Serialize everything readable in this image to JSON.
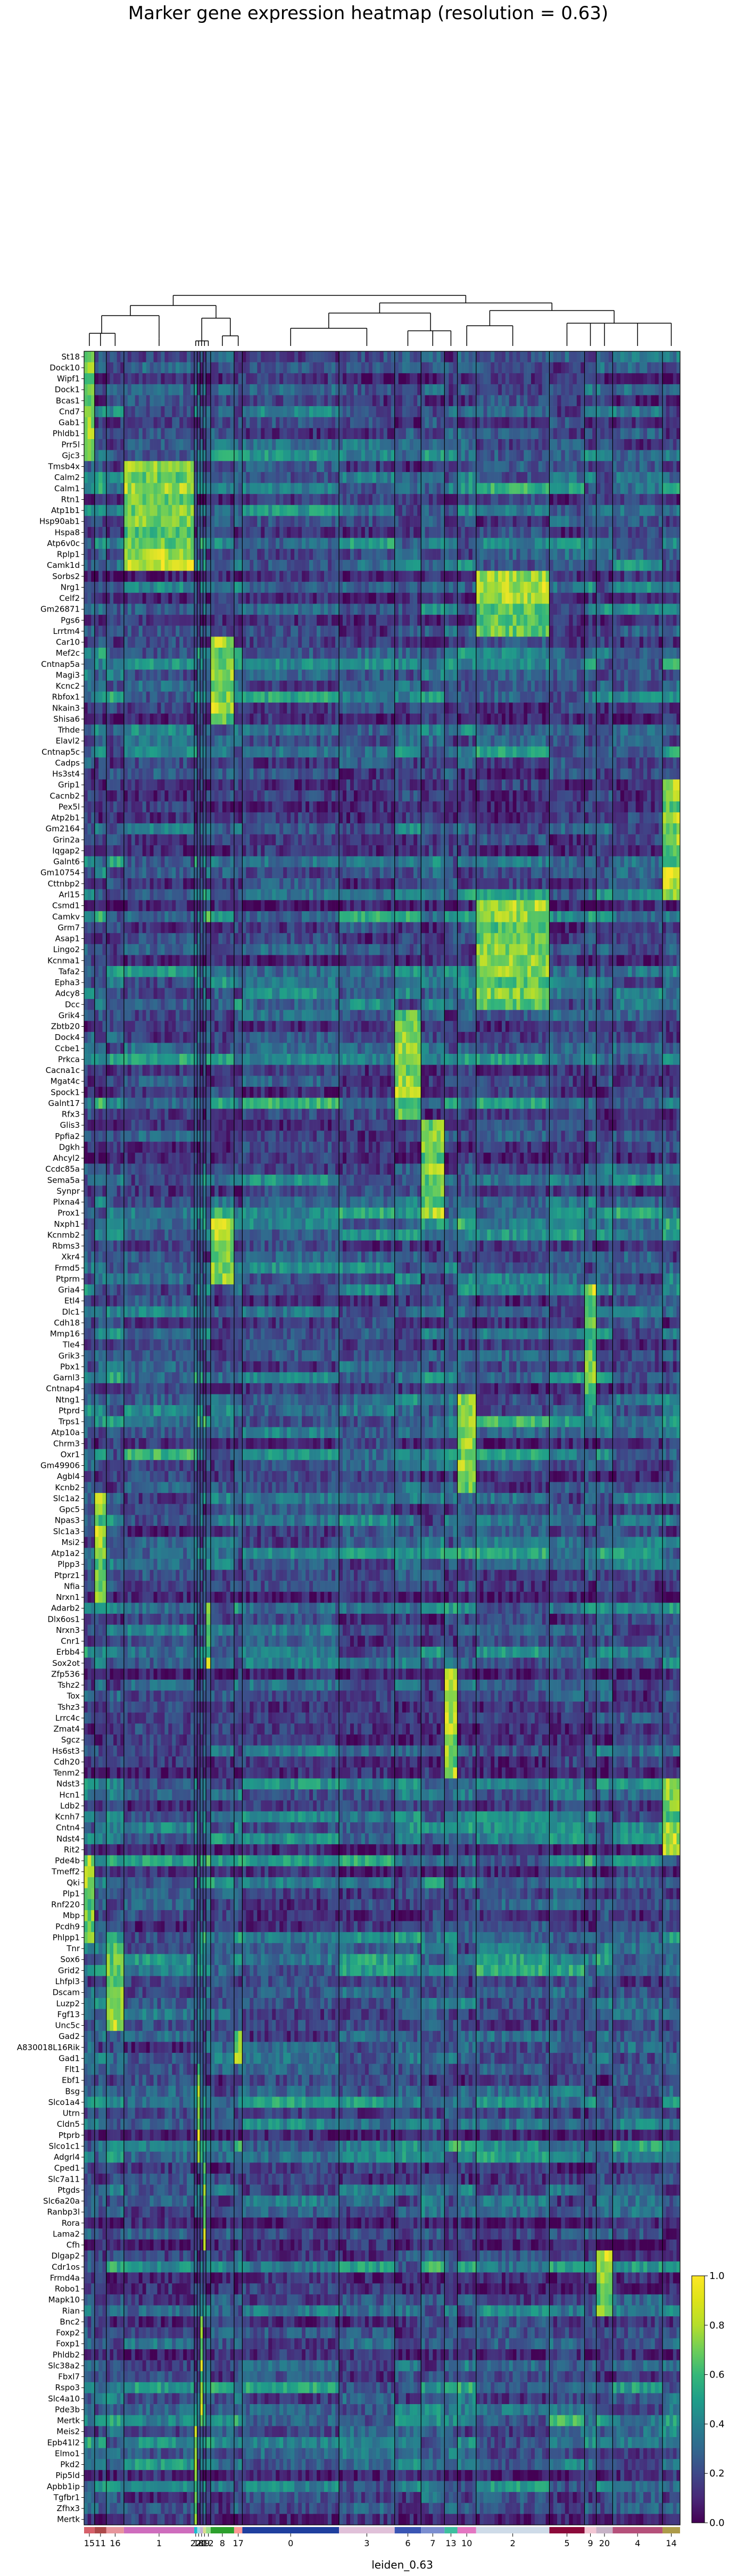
{
  "chart_data": {
    "type": "heatmap",
    "title": "Marker gene expression heatmap (resolution = 0.63)",
    "xlabel": "leiden_0.63",
    "ylabel": "",
    "colormap": "viridis",
    "colorbar": {
      "min": 0.0,
      "max": 1.0,
      "ticks": [
        "0.0",
        "0.2",
        "0.4",
        "0.6",
        "0.8",
        "1.0"
      ]
    },
    "dendrogram": "top",
    "clusters": [
      {
        "label": "15",
        "color": "#d6616b",
        "cells": 18
      },
      {
        "label": "11",
        "color": "#ad494a",
        "cells": 20
      },
      {
        "label": "16",
        "color": "#e7969c",
        "cells": 30
      },
      {
        "label": "1",
        "color": "#ce6dbd",
        "cells": 120
      },
      {
        "label": "22",
        "color": "#17becf",
        "cells": 5
      },
      {
        "label": "18",
        "color": "#9edae5",
        "cells": 5
      },
      {
        "label": "21",
        "color": "#c5b0d5",
        "cells": 5
      },
      {
        "label": "19",
        "color": "#dbdb8d",
        "cells": 5
      },
      {
        "label": "12",
        "color": "#98df8a",
        "cells": 8
      },
      {
        "label": "8",
        "color": "#2ca02c",
        "cells": 40
      },
      {
        "label": "17",
        "color": "#ff9896",
        "cells": 14
      },
      {
        "label": "0",
        "color": "#1f3f9f",
        "cells": 165
      },
      {
        "label": "3",
        "color": "#e0c1d9",
        "cells": 95
      },
      {
        "label": "6",
        "color": "#3a55b4",
        "cells": 45
      },
      {
        "label": "7",
        "color": "#7b8ed0",
        "cells": 40
      },
      {
        "label": "13",
        "color": "#3ebf9f",
        "cells": 22
      },
      {
        "label": "10",
        "color": "#e377c2",
        "cells": 32
      },
      {
        "label": "2",
        "color": "#cedbe8",
        "cells": 125
      },
      {
        "label": "5",
        "color": "#8c0a3a",
        "cells": 60
      },
      {
        "label": "9",
        "color": "#f2c6d3",
        "cells": 20
      },
      {
        "label": "20",
        "color": "#c7b3c7",
        "cells": 28
      },
      {
        "label": "4",
        "color": "#b5507a",
        "cells": 85
      },
      {
        "label": "14",
        "color": "#ad9b4a",
        "cells": 30
      }
    ],
    "genes": [
      "St18",
      "Dock10",
      "Wipf1",
      "Dock1",
      "Bcas1",
      "Cnd7",
      "Gab1",
      "Phldb1",
      "Prr5l",
      "Gjc3",
      "Tmsb4x",
      "Calm2",
      "Calm1",
      "Rtn1",
      "Atp1b1",
      "Hsp90ab1",
      "Hspa8",
      "Atp6v0c",
      "Rplp1",
      "Camk1d",
      "Sorbs2",
      "Nrg1",
      "Celf2",
      "Gm26871",
      "Pgs6",
      "Lrrtm4",
      "Car10",
      "Mef2c",
      "Cntnap5a",
      "Magi3",
      "Kcnc2",
      "Rbfox1",
      "Nkain3",
      "Shisa6",
      "Trhde",
      "Elavl2",
      "Cntnap5c",
      "Cadps",
      "Hs3st4",
      "Grip1",
      "Cacnb2",
      "Pex5l",
      "Atp2b1",
      "Gm2164",
      "Grin2a",
      "Iqgap2",
      "Galnt6",
      "Gm10754",
      "Cttnbp2",
      "Arl15",
      "Csmd1",
      "Camkv",
      "Grm7",
      "Asap1",
      "Lingo2",
      "Kcnma1",
      "Tafa2",
      "Epha3",
      "Adcy8",
      "Dcc",
      "Grik4",
      "Zbtb20",
      "Dock4",
      "Ccbe1",
      "Prkca",
      "Cacna1c",
      "Mgat4c",
      "Spock1",
      "Galnt17",
      "Rfx3",
      "Glis3",
      "Ppfia2",
      "Dgkh",
      "Ahcyl2",
      "Ccdc85a",
      "Sema5a",
      "Synpr",
      "Plxna4",
      "Prox1",
      "Nxph1",
      "Kcnmb2",
      "Rbms3",
      "Xkr4",
      "Frmd5",
      "Ptprm",
      "Gria4",
      "Etl4",
      "Dlc1",
      "Cdh18",
      "Mmp16",
      "Tle4",
      "Grik3",
      "Pbx1",
      "Garnl3",
      "Cntnap4",
      "Ntng1",
      "Ptprd",
      "Trps1",
      "Atp10a",
      "Chrm3",
      "Oxr1",
      "Gm49906",
      "Agbl4",
      "Kcnb2",
      "Slc1a2",
      "Gpc5",
      "Npas3",
      "Slc1a3",
      "Msi2",
      "Atp1a2",
      "Plpp3",
      "Ptprz1",
      "Nfia",
      "Nrxn1",
      "Adarb2",
      "Dlx6os1",
      "Nrxn3",
      "Cnr1",
      "Erbb4",
      "Sox2ot",
      "Zfp536",
      "Tshz2",
      "Tox",
      "Tshz3",
      "Lrrc4c",
      "Zmat4",
      "Sgcz",
      "Hs6st3",
      "Cdh20",
      "Tenm2",
      "Ndst3",
      "Hcn1",
      "Ldb2",
      "Kcnh7",
      "Cntn4",
      "Ndst4",
      "Rit2",
      "Pde4b",
      "Tmeff2",
      "Qki",
      "Plp1",
      "Rnf220",
      "Mbp",
      "Pcdh9",
      "Phlpp1",
      "Tnr",
      "Sox6",
      "Grid2",
      "Lhfpl3",
      "Dscam",
      "Luzp2",
      "Fgf13",
      "Unc5c",
      "Gad2",
      "A830018L16Rik",
      "Gad1",
      "Flt1",
      "Ebf1",
      "Bsg",
      "Slco1a4",
      "Utrn",
      "Cldn5",
      "Ptprb",
      "Slco1c1",
      "Adgrl4",
      "Cped1",
      "Slc7a11",
      "Ptgds",
      "Slc6a20a",
      "Ranbp3l",
      "Rora",
      "Lama2",
      "Cfh",
      "Dlgap2",
      "Cdr1os",
      "Frmd4a",
      "Robo1",
      "Mapk10",
      "Rian",
      "Bnc2",
      "Foxp2",
      "Foxp1",
      "Phldb2",
      "Slc38a2",
      "Fbxl7",
      "Rspo3",
      "Slc4a10",
      "Pde3b",
      "Mertk_b",
      "Meis2",
      "Epb41l2",
      "Elmo1",
      "Pkd2",
      "Pip5ld",
      "Apbb1ip",
      "Tgfbr1",
      "Zfhx3",
      "Mertk"
    ],
    "gene_labels": [
      "St18",
      "Dock10",
      "Wipf1",
      "Dock1",
      "Bcas1",
      "Cnd7",
      "Gab1",
      "Phldb1",
      "Prr5l",
      "Gjc3",
      "Tmsb4x",
      "Calm2",
      "Calm1",
      "Rtn1",
      "Atp1b1",
      "Hsp90ab1",
      "Hspa8",
      "Atp6v0c",
      "Rplp1",
      "Camk1d",
      "Sorbs2",
      "Nrg1",
      "Celf2",
      "Gm26871",
      "Pgs6",
      "Lrrtm4",
      "Car10",
      "Mef2c",
      "Cntnap5a",
      "Magi3",
      "Kcnc2",
      "Rbfox1",
      "Nkain3",
      "Shisa6",
      "Trhde",
      "Elavl2",
      "Cntnap5c",
      "Cadps",
      "Hs3st4",
      "Grip1",
      "Cacnb2",
      "Pex5l",
      "Atp2b1",
      "Gm2164",
      "Grin2a",
      "Iqgap2",
      "Galnt6",
      "Gm10754",
      "Cttnbp2",
      "Arl15",
      "Csmd1",
      "Camkv",
      "Grm7",
      "Asap1",
      "Lingo2",
      "Kcnma1",
      "Tafa2",
      "Epha3",
      "Adcy8",
      "Dcc",
      "Grik4",
      "Zbtb20",
      "Dock4",
      "Ccbe1",
      "Prkca",
      "Cacna1c",
      "Mgat4c",
      "Spock1",
      "Galnt17",
      "Rfx3",
      "Glis3",
      "Ppfia2",
      "Dgkh",
      "Ahcyl2",
      "Ccdc85a",
      "Sema5a",
      "Synpr",
      "Plxna4",
      "Prox1",
      "Nxph1",
      "Kcnmb2",
      "Rbms3",
      "Xkr4",
      "Frmd5",
      "Ptprm",
      "Gria4",
      "Etl4",
      "Dlc1",
      "Cdh18",
      "Mmp16",
      "Tle4",
      "Grik3",
      "Pbx1",
      "Garnl3",
      "Cntnap4",
      "Ntng1",
      "Ptprd",
      "Trps1",
      "Atp10a",
      "Chrm3",
      "Oxr1",
      "Gm49906",
      "Agbl4",
      "Kcnb2",
      "Slc1a2",
      "Gpc5",
      "Npas3",
      "Slc1a3",
      "Msi2",
      "Atp1a2",
      "Plpp3",
      "Ptprz1",
      "Nfia",
      "Nrxn1",
      "Adarb2",
      "Dlx6os1",
      "Nrxn3",
      "Cnr1",
      "Erbb4",
      "Sox2ot",
      "Zfp536",
      "Tshz2",
      "Tox",
      "Tshz3",
      "Lrrc4c",
      "Zmat4",
      "Sgcz",
      "Hs6st3",
      "Cdh20",
      "Tenm2",
      "Ndst3",
      "Hcn1",
      "Ldb2",
      "Kcnh7",
      "Cntn4",
      "Ndst4",
      "Rit2",
      "Pde4b",
      "Tmeff2",
      "Qki",
      "Plp1",
      "Rnf220",
      "Mbp",
      "Pcdh9",
      "Phlpp1",
      "Tnr",
      "Sox6",
      "Grid2",
      "Lhfpl3",
      "Dscam",
      "Luzp2",
      "Fgf13",
      "Unc5c",
      "Gad2",
      "A830018L16Rik",
      "Gad1",
      "Flt1",
      "Ebf1",
      "Bsg",
      "Slco1a4",
      "Utrn",
      "Cldn5",
      "Ptprb",
      "Slco1c1",
      "Adgrl4",
      "Cped1",
      "Slc7a11",
      "Ptgds",
      "Slc6a20a",
      "Ranbp3l",
      "Rora",
      "Lama2",
      "Cfh",
      "Dlgap2",
      "Cdr1os",
      "Frmd4a",
      "Robo1",
      "Mapk10",
      "Rian",
      "Bnc2",
      "Foxp2",
      "Foxp1",
      "Phldb2",
      "Slc38a2",
      "Fbxl7",
      "Rspo3",
      "Slc4a10",
      "Pde3b",
      "Mertk",
      "Meis2",
      "Epb41l2",
      "Elmo1",
      "Pkd2",
      "Pip5ld",
      "Apbb1ip",
      "Tgfbr1",
      "Zfhx3",
      "Mertk"
    ],
    "marker_blocks": [
      {
        "cluster": "15",
        "genes": [
          "St18",
          "Dock10",
          "Wipf1",
          "Dock1",
          "Bcas1",
          "Cnd7",
          "Gab1",
          "Phldb1",
          "Prr5l",
          "Gjc3"
        ]
      },
      {
        "cluster": "1",
        "genes": [
          "Tmsb4x",
          "Calm2",
          "Calm1",
          "Rtn1",
          "Atp1b1",
          "Hsp90ab1",
          "Hspa8",
          "Atp6v0c",
          "Rplp1",
          "Camk1d"
        ]
      },
      {
        "cluster": "2",
        "genes": [
          "Sorbs2",
          "Nrg1",
          "Celf2",
          "Gm26871",
          "Pgs6",
          "Lrrtm4"
        ]
      },
      {
        "cluster": "8",
        "genes": [
          "Car10",
          "Mef2c",
          "Cntnap5a",
          "Magi3",
          "Kcnc2",
          "Rbfox1",
          "Nkain3",
          "Shisa6"
        ]
      },
      {
        "cluster": "14",
        "genes": [
          "Grip1",
          "Cacnb2",
          "Pex5l",
          "Atp2b1",
          "Gm2164",
          "Grin2a",
          "Iqgap2",
          "Galnt6",
          "Gm10754",
          "Cttnbp2",
          "Arl15"
        ]
      },
      {
        "cluster": "2",
        "genes": [
          "Csmd1",
          "Camkv",
          "Grm7",
          "Asap1",
          "Lingo2",
          "Kcnma1",
          "Tafa2",
          "Epha3",
          "Adcy8",
          "Dcc"
        ]
      },
      {
        "cluster": "6",
        "genes": [
          "Grik4",
          "Zbtb20",
          "Dock4",
          "Ccbe1",
          "Prkca",
          "Cacna1c",
          "Mgat4c",
          "Spock1",
          "Galnt17",
          "Rfx3"
        ]
      },
      {
        "cluster": "7",
        "genes": [
          "Glis3",
          "Ppfia2",
          "Dgkh",
          "Ahcyl2",
          "Ccdc85a",
          "Sema5a",
          "Synpr",
          "Plxna4",
          "Prox1"
        ]
      },
      {
        "cluster": "8",
        "genes": [
          "Nxph1",
          "Kcnmb2",
          "Rbms3",
          "Xkr4",
          "Frmd5",
          "Ptprm"
        ]
      },
      {
        "cluster": "9",
        "genes": [
          "Gria4",
          "Etl4",
          "Dlc1",
          "Cdh18",
          "Mmp16",
          "Tle4",
          "Grik3",
          "Pbx1",
          "Garnl3",
          "Cntnap4"
        ]
      },
      {
        "cluster": "10",
        "genes": [
          "Ntng1",
          "Ptprd",
          "Trps1",
          "Atp10a",
          "Chrm3",
          "Oxr1",
          "Gm49906",
          "Agbl4",
          "Kcnb2"
        ]
      },
      {
        "cluster": "11",
        "genes": [
          "Slc1a2",
          "Gpc5",
          "Npas3",
          "Slc1a3",
          "Msi2",
          "Atp1a2",
          "Plpp3",
          "Ptprz1",
          "Nfia",
          "Nrxn1"
        ]
      },
      {
        "cluster": "12",
        "genes": [
          "Adarb2",
          "Dlx6os1",
          "Nrxn3",
          "Cnr1",
          "Erbb4",
          "Sox2ot"
        ]
      },
      {
        "cluster": "13",
        "genes": [
          "Zfp536",
          "Tshz2",
          "Tox",
          "Tshz3",
          "Lrrc4c",
          "Zmat4",
          "Sgcz",
          "Hs6st3",
          "Cdh20",
          "Tenm2"
        ]
      },
      {
        "cluster": "14",
        "genes": [
          "Ndst3",
          "Hcn1",
          "Ldb2",
          "Kcnh7",
          "Cntn4",
          "Ndst4",
          "Rit2"
        ]
      },
      {
        "cluster": "15",
        "genes": [
          "Pde4b",
          "Tmeff2",
          "Qki",
          "Plp1",
          "Rnf220",
          "Mbp",
          "Pcdh9",
          "Phlpp1"
        ]
      },
      {
        "cluster": "16",
        "genes": [
          "Tnr",
          "Sox6",
          "Grid2",
          "Lhfpl3",
          "Dscam",
          "Luzp2",
          "Fgf13",
          "Unc5c"
        ]
      },
      {
        "cluster": "17",
        "genes": [
          "Gad2",
          "A830018L16Rik",
          "Gad1"
        ]
      },
      {
        "cluster": "18",
        "genes": [
          "Flt1",
          "Ebf1",
          "Bsg",
          "Slco1a4",
          "Utrn",
          "Cldn5",
          "Ptprb",
          "Slco1c1",
          "Adgrl4"
        ]
      },
      {
        "cluster": "19",
        "genes": [
          "Cped1",
          "Slc7a11",
          "Ptgds",
          "Slc6a20a",
          "Ranbp3l",
          "Rora",
          "Lama2",
          "Cfh"
        ]
      },
      {
        "cluster": "20",
        "genes": [
          "Dlgap2",
          "Cdr1os",
          "Frmd4a",
          "Robo1",
          "Mapk10",
          "Rian"
        ]
      },
      {
        "cluster": "21",
        "genes": [
          "Bnc2",
          "Foxp2",
          "Foxp1",
          "Phldb2",
          "Slc38a2",
          "Fbxl7",
          "Rspo3",
          "Slc4a10",
          "Pde3b"
        ]
      },
      {
        "cluster": "22",
        "genes": [
          "Meis2",
          "Epb41l2",
          "Elmo1",
          "Pkd2",
          "Pip5ld",
          "Apbb1ip",
          "Tgfbr1",
          "Zfhx3",
          "Mertk"
        ]
      }
    ]
  }
}
